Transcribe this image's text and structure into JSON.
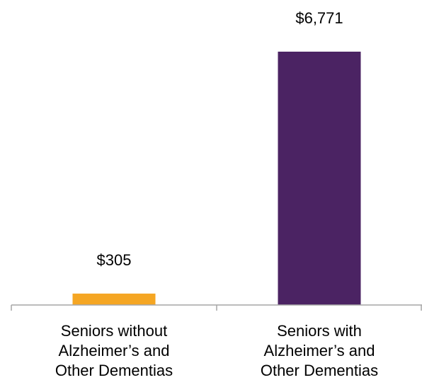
{
  "chart_data": {
    "type": "bar",
    "categories": [
      [
        "Seniors without",
        "Alzheimer’s and",
        "Other Dementias"
      ],
      [
        "Seniors with",
        "Alzheimer’s and",
        "Other Dementias"
      ]
    ],
    "values": [
      305,
      6771
    ],
    "value_labels": [
      "$305",
      "$6,771"
    ],
    "colors": [
      "#f5a623",
      "#4b2363"
    ],
    "ylim": [
      0,
      7000
    ],
    "grid": false,
    "legend": "none",
    "title": "",
    "xlabel": "",
    "ylabel": ""
  }
}
